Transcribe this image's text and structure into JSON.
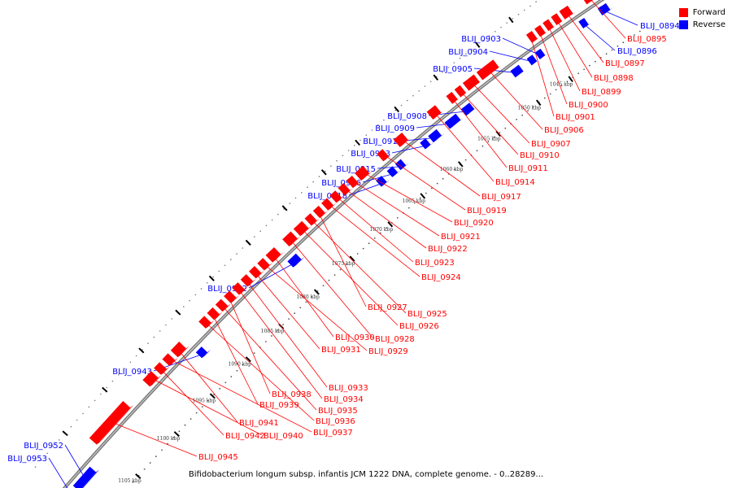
{
  "caption": "Bifidobacterium longum subsp. infantis JCM 1222 DNA, complete genome. - 0..28289...",
  "legend": {
    "forward_label": "Forward",
    "reverse_label": "Reverse",
    "forward_color": "#ff0000",
    "reverse_color": "#0000ff"
  },
  "ticks": [
    "1045 kbp",
    "1050 kbp",
    "1055 kbp",
    "1060 kbp",
    "1065 kbp",
    "1070 kbp",
    "1075 kbp",
    "1080 kbp",
    "1085 kbp",
    "1090 kbp",
    "1095 kbp",
    "1100 kbp",
    "1105 kbp"
  ],
  "reverse_genes": [
    "BLIJ_0894",
    "BLIJ_0896",
    "BLIJ_0903",
    "BLIJ_0904",
    "BLIJ_0905",
    "BLIJ_0908",
    "BLIJ_0909",
    "BLIJ_0912",
    "BLIJ_0913",
    "BLIJ_0915",
    "BLIJ_0916",
    "BLIJ_0918",
    "BLIJ_0932",
    "BLIJ_0943",
    "BLIJ_0952",
    "BLIJ_0953"
  ],
  "forward_genes": [
    "BLIJ_0895",
    "BLIJ_0897",
    "BLIJ_0898",
    "BLIJ_0899",
    "BLIJ_0900",
    "BLIJ_0901",
    "BLIJ_0906",
    "BLIJ_0907",
    "BLIJ_0910",
    "BLIJ_0911",
    "BLIJ_0914",
    "BLIJ_0917",
    "BLIJ_0919",
    "BLIJ_0920",
    "BLIJ_0921",
    "BLIJ_0922",
    "BLIJ_0923",
    "BLIJ_0924",
    "BLIJ_0927",
    "BLIJ_0925",
    "BLIJ_0926",
    "BLIJ_0928",
    "BLIJ_0930",
    "BLIJ_0929",
    "BLIJ_0931",
    "BLIJ_0933",
    "BLIJ_0934",
    "BLIJ_0938",
    "BLIJ_0935",
    "BLIJ_0939",
    "BLIJ_0936",
    "BLIJ_0941",
    "BLIJ_0937",
    "BLIJ_0942",
    "BLIJ_0940",
    "BLIJ_0945"
  ]
}
